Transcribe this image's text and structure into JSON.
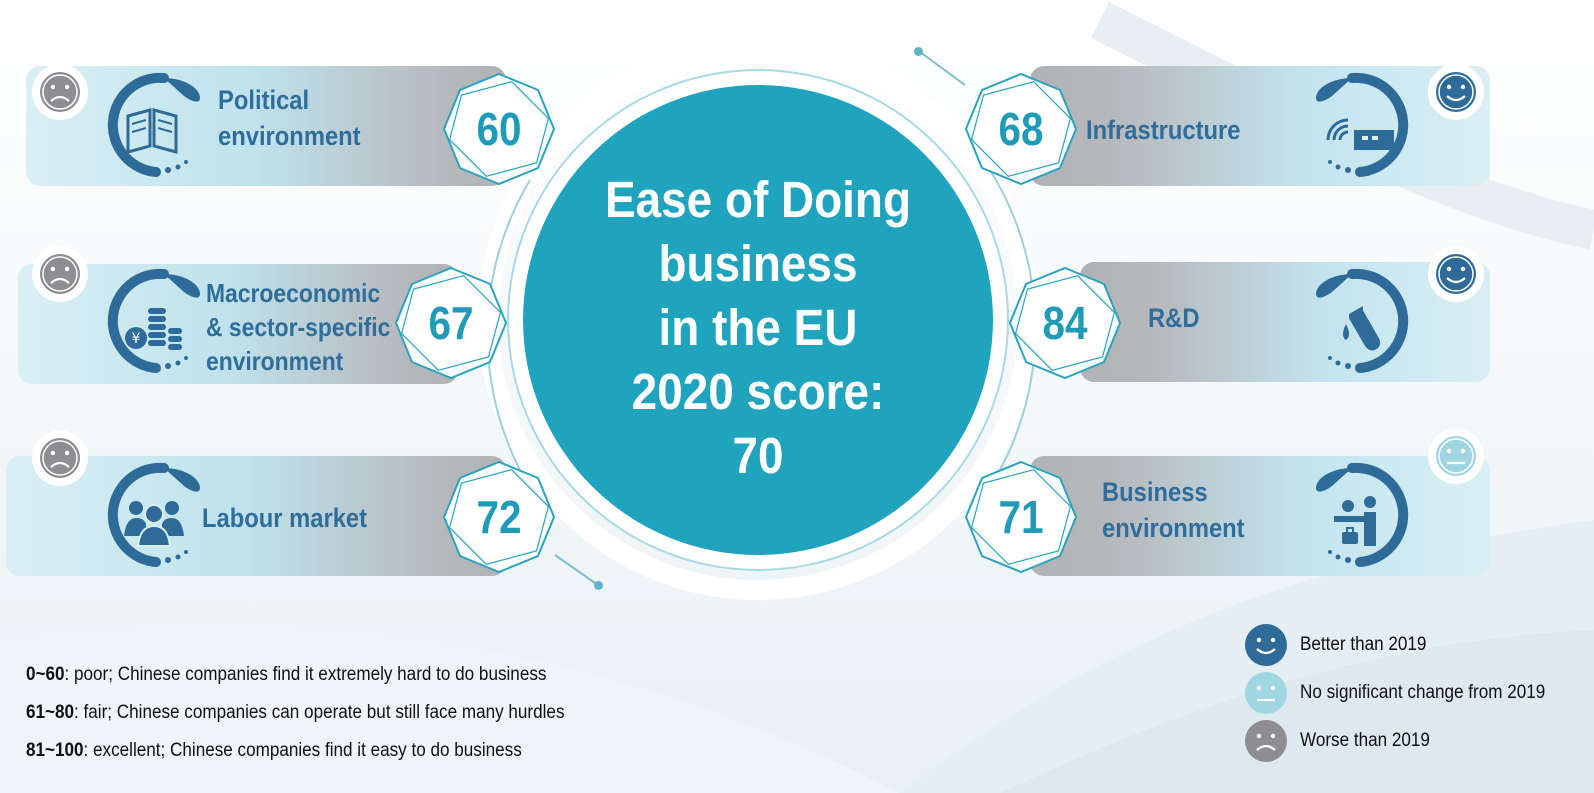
{
  "hub": {
    "line1": "Ease of Doing",
    "line2": "business",
    "line3": "in the EU",
    "line4": "2020 score:",
    "line5": "70"
  },
  "categories": {
    "political": {
      "label_line1": "Political",
      "label_line2": "environment",
      "score": "60",
      "trend": "worse",
      "icon": "book-icon"
    },
    "macro": {
      "label_line1": "Macroeconomic",
      "label_line2": "& sector-specific",
      "label_line3": "environment",
      "score": "67",
      "trend": "worse",
      "icon": "coins-yen-icon"
    },
    "labour": {
      "label_line1": "Labour market",
      "score": "72",
      "trend": "worse",
      "icon": "people-group-icon"
    },
    "infrastructure": {
      "label_line1": "Infrastructure",
      "score": "68",
      "trend": "better",
      "icon": "router-wifi-icon"
    },
    "rnd": {
      "label_line1": "R&D",
      "score": "84",
      "trend": "better",
      "icon": "test-tube-icon"
    },
    "business": {
      "label_line1": "Business",
      "label_line2": "environment",
      "score": "71",
      "trend": "no-change",
      "icon": "reception-desk-icon"
    }
  },
  "legend": {
    "better": "Better than 2019",
    "same": "No significant change from 2019",
    "worse": "Worse than 2019"
  },
  "scale": [
    {
      "range": "0~60",
      "text": ": poor; Chinese companies find it extremely hard to do business"
    },
    {
      "range": "61~80",
      "text": ": fair; Chinese companies can operate but still face many hurdles"
    },
    {
      "range": "81~100",
      "text": ": excellent; Chinese companies find it easy to do business"
    }
  ],
  "colors": {
    "teal": "#20a3bd",
    "label_blue": "#2f6d9b",
    "face_better": "#2e6b98",
    "face_same": "#9fd6e2",
    "face_worse": "#8e8e92"
  }
}
